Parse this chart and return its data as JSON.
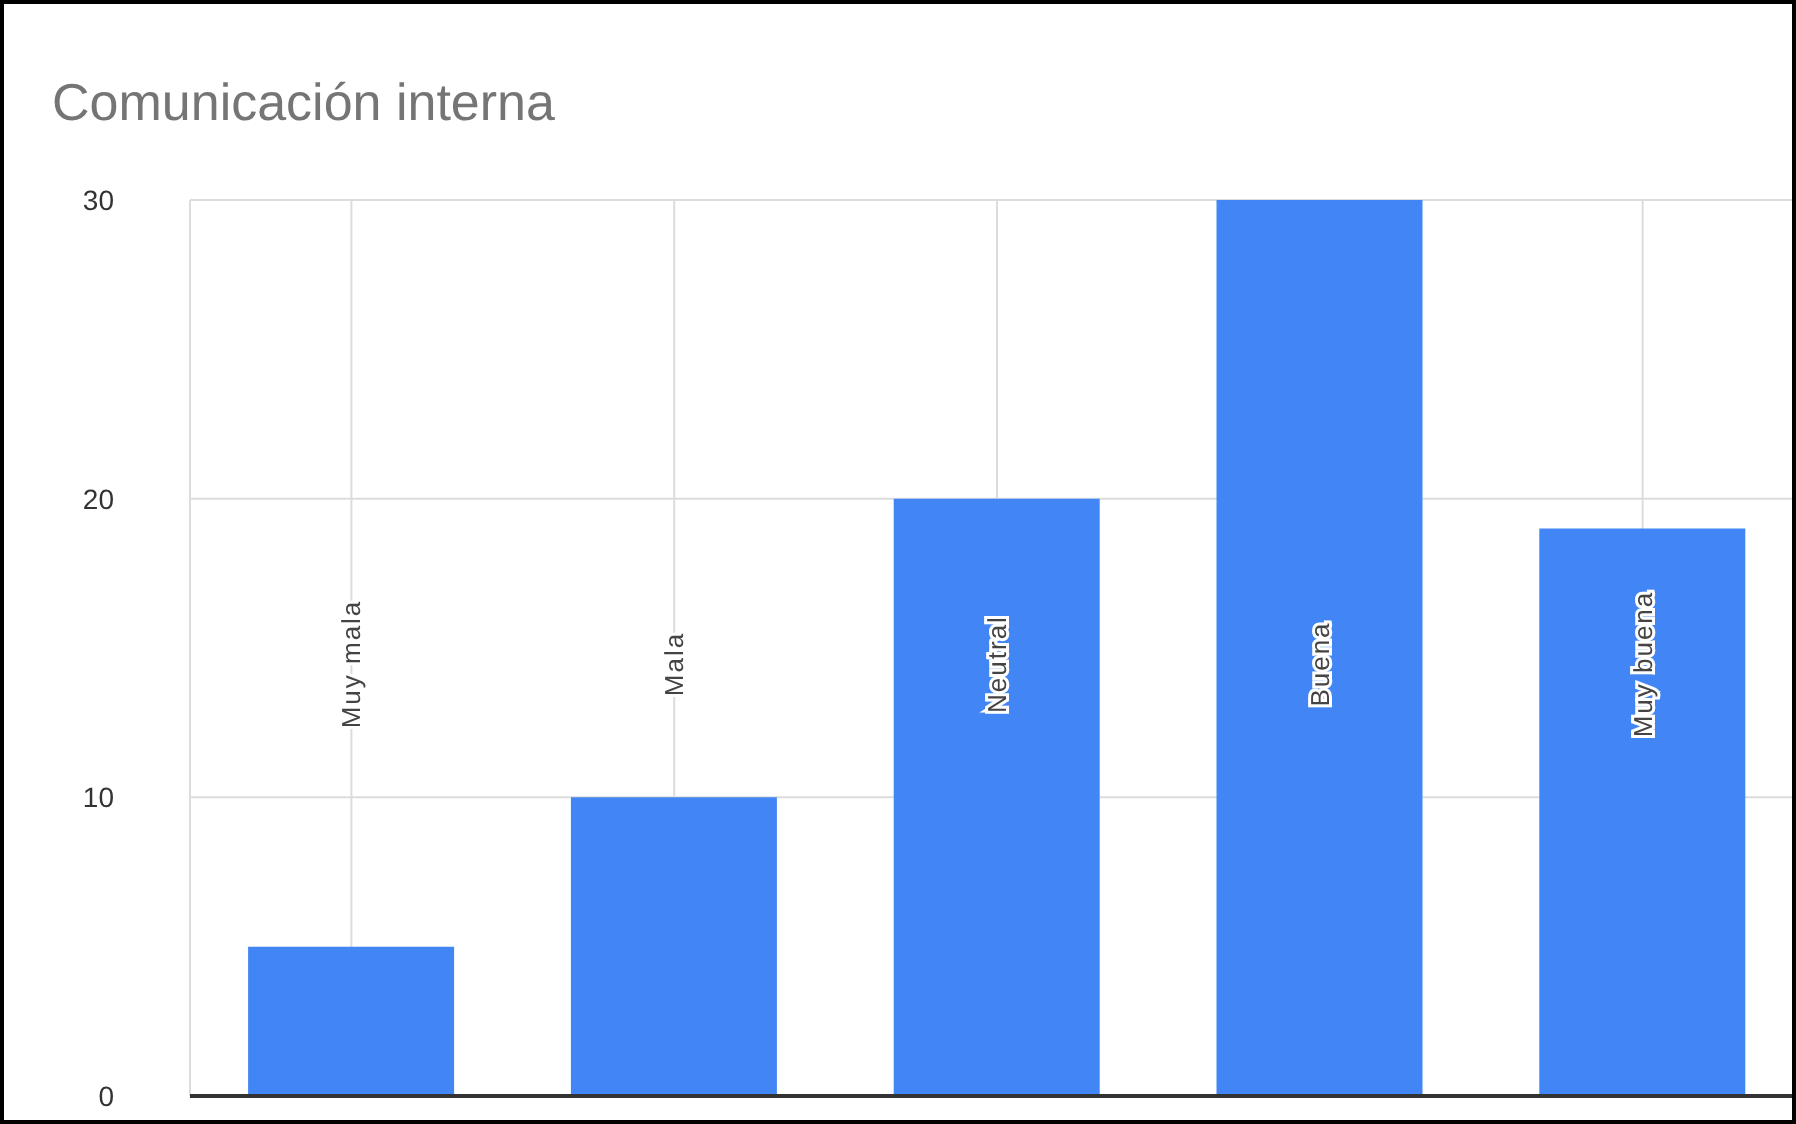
{
  "chart_data": {
    "type": "bar",
    "title": "Comunicación interna",
    "categories": [
      "Muy mala",
      "Mala",
      "Neutral",
      "Buena",
      "Muy buena"
    ],
    "values": [
      5,
      10,
      20,
      30,
      19
    ],
    "color": "#4285f4",
    "ylim": [
      0,
      30
    ],
    "yticks": [
      0,
      10,
      20,
      30
    ],
    "grid": true
  }
}
